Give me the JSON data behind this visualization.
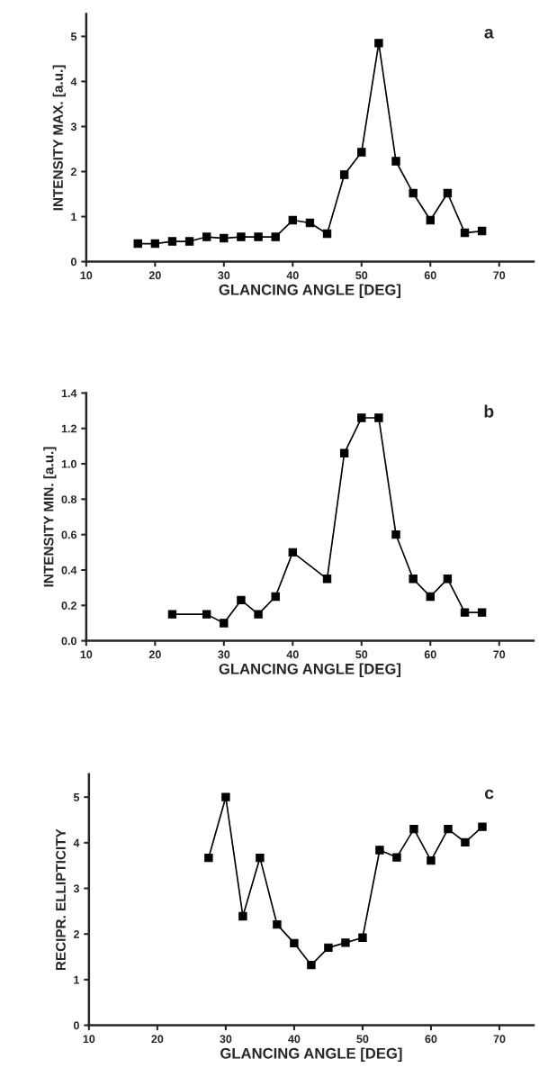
{
  "chart_data": [
    {
      "type": "line",
      "xlabel": "GLANCING ANGLE [DEG]",
      "ylabel": "INTENSITY MAX. [a.u.]",
      "annotations": [
        "a"
      ],
      "x": [
        17.5,
        20,
        22.5,
        25,
        27.5,
        30,
        32.5,
        35,
        37.5,
        40,
        42.5,
        45,
        47.5,
        50,
        52.5,
        55,
        57.5,
        60,
        62.5,
        65,
        67.5
      ],
      "values": [
        0.4,
        0.4,
        0.45,
        0.45,
        0.55,
        0.52,
        0.55,
        0.55,
        0.55,
        0.92,
        0.86,
        0.62,
        1.93,
        2.43,
        4.85,
        2.23,
        1.52,
        0.92,
        1.52,
        0.64,
        0.68
      ],
      "color": "#000000",
      "marker": "square",
      "line_style": "solid",
      "grid": false,
      "xlim": [
        10,
        75
      ],
      "xticks": [
        10,
        20,
        30,
        40,
        50,
        60,
        70
      ],
      "ylim": [
        0,
        5.5
      ],
      "yticks": [
        0,
        1,
        2,
        3,
        4,
        5
      ]
    },
    {
      "type": "line",
      "xlabel": "GLANCING ANGLE [DEG]",
      "ylabel": "INTENSITY MIN. [a.u.]",
      "annotations": [
        "b"
      ],
      "x": [
        22.5,
        27.5,
        30,
        32.5,
        35,
        37.5,
        40,
        45,
        47.5,
        50,
        52.5,
        55,
        57.5,
        60,
        62.5,
        65,
        67.5
      ],
      "values": [
        0.15,
        0.15,
        0.1,
        0.23,
        0.15,
        0.25,
        0.5,
        0.35,
        1.06,
        1.26,
        1.26,
        0.6,
        0.35,
        0.25,
        0.35,
        0.16,
        0.16
      ],
      "color": "#000000",
      "marker": "square",
      "line_style": "solid",
      "grid": false,
      "xlim": [
        10,
        75
      ],
      "xticks": [
        10,
        20,
        30,
        40,
        50,
        60,
        70
      ],
      "ylim": [
        0,
        1.4
      ],
      "yticks": [
        {
          "value": 0,
          "label": "0.0"
        },
        {
          "value": 0.2,
          "label": "0.2"
        },
        {
          "value": 0.4,
          "label": "0.4"
        },
        {
          "value": 0.6,
          "label": "0.6"
        },
        {
          "value": 0.8,
          "label": "0.8"
        },
        {
          "value": 1.0,
          "label": "1.0"
        },
        {
          "value": 1.2,
          "label": "1.2"
        },
        {
          "value": 1.4,
          "label": "1.4"
        }
      ]
    },
    {
      "type": "line",
      "xlabel": "GLANCING ANGLE [DEG]",
      "ylabel": "RECIPR. ELLIPTICITY",
      "annotations": [
        "c"
      ],
      "x": [
        27.5,
        30,
        32.5,
        35,
        37.5,
        40,
        42.5,
        45,
        47.5,
        50,
        52.5,
        55,
        57.5,
        60,
        62.5,
        65,
        67.5
      ],
      "values": [
        3.67,
        5.0,
        2.39,
        3.67,
        2.21,
        1.8,
        1.32,
        1.7,
        1.81,
        1.92,
        3.84,
        3.68,
        4.3,
        3.61,
        4.3,
        4.01,
        4.35
      ],
      "color": "#000000",
      "marker": "square",
      "line_style": "solid",
      "grid": false,
      "xlim": [
        10,
        75
      ],
      "xticks": [
        10,
        20,
        30,
        40,
        50,
        60,
        70
      ],
      "ylim": [
        0,
        5.5
      ],
      "yticks": [
        0,
        1,
        2,
        3,
        4,
        5
      ]
    }
  ]
}
